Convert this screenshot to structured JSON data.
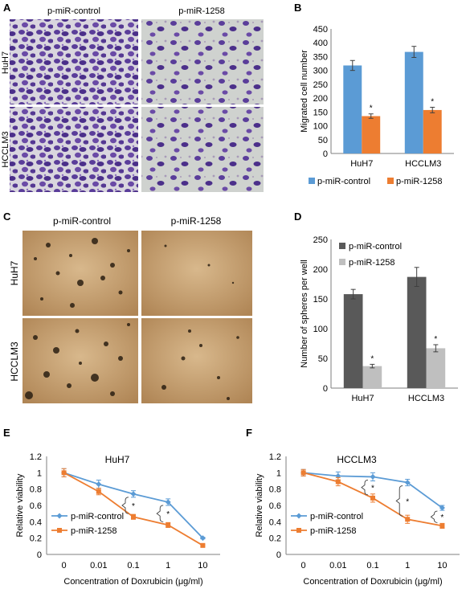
{
  "panels": {
    "A": {
      "letter": "A",
      "col_labels": [
        "p-miR-control",
        "p-miR-1258"
      ],
      "row_labels": [
        "HuH7",
        "HCCLM3"
      ]
    },
    "C": {
      "letter": "C",
      "col_labels": [
        "p-miR-control",
        "p-miR-1258"
      ],
      "row_labels": [
        "HuH7",
        "HCCLM3"
      ]
    }
  },
  "colors": {
    "blue": "#5b9bd5",
    "orange": "#ed7d31",
    "dark_gray": "#595959",
    "light_gray": "#bfbfbf",
    "stain_purple": "#5a3d9a",
    "sphere_bg": "#c9a57a"
  },
  "chart_data": [
    {
      "panel": "B",
      "type": "bar",
      "categories": [
        "HuH7",
        "HCCLM3"
      ],
      "series": [
        {
          "name": "p-miR-control",
          "values": [
            318,
            367
          ],
          "errors": [
            18,
            20
          ],
          "color": "#5b9bd5"
        },
        {
          "name": "p-miR-1258",
          "values": [
            135,
            157
          ],
          "errors": [
            8,
            10
          ],
          "color": "#ed7d31"
        }
      ],
      "ylabel": "Migrated cell number",
      "ylim": [
        0,
        450
      ],
      "yticks": [
        0,
        50,
        100,
        150,
        200,
        250,
        300,
        350,
        400,
        450
      ],
      "significance": [
        "*",
        "*"
      ],
      "legend_placement": "bottom"
    },
    {
      "panel": "D",
      "type": "bar",
      "categories": [
        "HuH7",
        "HCCLM3"
      ],
      "series": [
        {
          "name": "p-miR-control",
          "values": [
            158,
            187
          ],
          "errors": [
            8,
            16
          ],
          "color": "#595959"
        },
        {
          "name": "p-miR-1258",
          "values": [
            37,
            67
          ],
          "errors": [
            3,
            6
          ],
          "color": "#bfbfbf"
        }
      ],
      "ylabel": "Number of spheres per well",
      "ylim": [
        0,
        250
      ],
      "yticks": [
        0,
        50,
        100,
        150,
        200,
        250
      ],
      "significance": [
        "*",
        "*"
      ],
      "legend_placement": "top-left"
    },
    {
      "panel": "E",
      "type": "line",
      "title": "HuH7",
      "x": [
        "0",
        "0.01",
        "0.1",
        "1",
        "10"
      ],
      "series": [
        {
          "name": "p-miR-control",
          "values": [
            1.0,
            0.86,
            0.74,
            0.64,
            0.2
          ],
          "errors": [
            0.05,
            0.05,
            0.04,
            0.04,
            0.01
          ],
          "color": "#5b9bd5",
          "marker": "diamond"
        },
        {
          "name": "p-miR-1258",
          "values": [
            1.0,
            0.77,
            0.46,
            0.36,
            0.11
          ],
          "errors": [
            0.05,
            0.04,
            0.03,
            0.03,
            0.01
          ],
          "color": "#ed7d31",
          "marker": "square"
        }
      ],
      "xlabel": "Concentration of Doxrubicin  (μg/ml)",
      "ylabel": "Relative viability",
      "ylim": [
        0,
        1.2
      ],
      "yticks": [
        "0",
        "0.2",
        "0.4",
        "0.6",
        "0.8",
        "1",
        "1.2"
      ],
      "significance_at": [
        2,
        3
      ],
      "legend_placement": "bottom-left"
    },
    {
      "panel": "F",
      "type": "line",
      "title": "HCCLM3",
      "x": [
        "0",
        "0.01",
        "0.1",
        "1",
        "10"
      ],
      "series": [
        {
          "name": "p-miR-control",
          "values": [
            1.0,
            0.96,
            0.95,
            0.88,
            0.57
          ],
          "errors": [
            0.04,
            0.05,
            0.05,
            0.04,
            0.03
          ],
          "color": "#5b9bd5",
          "marker": "diamond"
        },
        {
          "name": "p-miR-1258",
          "values": [
            1.0,
            0.89,
            0.69,
            0.43,
            0.35
          ],
          "errors": [
            0.04,
            0.05,
            0.05,
            0.05,
            0.03
          ],
          "color": "#ed7d31",
          "marker": "square"
        }
      ],
      "xlabel": "Concentration of Doxrubicin  (μg/ml)",
      "ylabel": "Relative viability",
      "ylim": [
        0,
        1.2
      ],
      "yticks": [
        "0",
        "0.2",
        "0.4",
        "0.6",
        "0.8",
        "1",
        "1.2"
      ],
      "significance_at": [
        2,
        3,
        4
      ],
      "legend_placement": "bottom-left"
    }
  ]
}
